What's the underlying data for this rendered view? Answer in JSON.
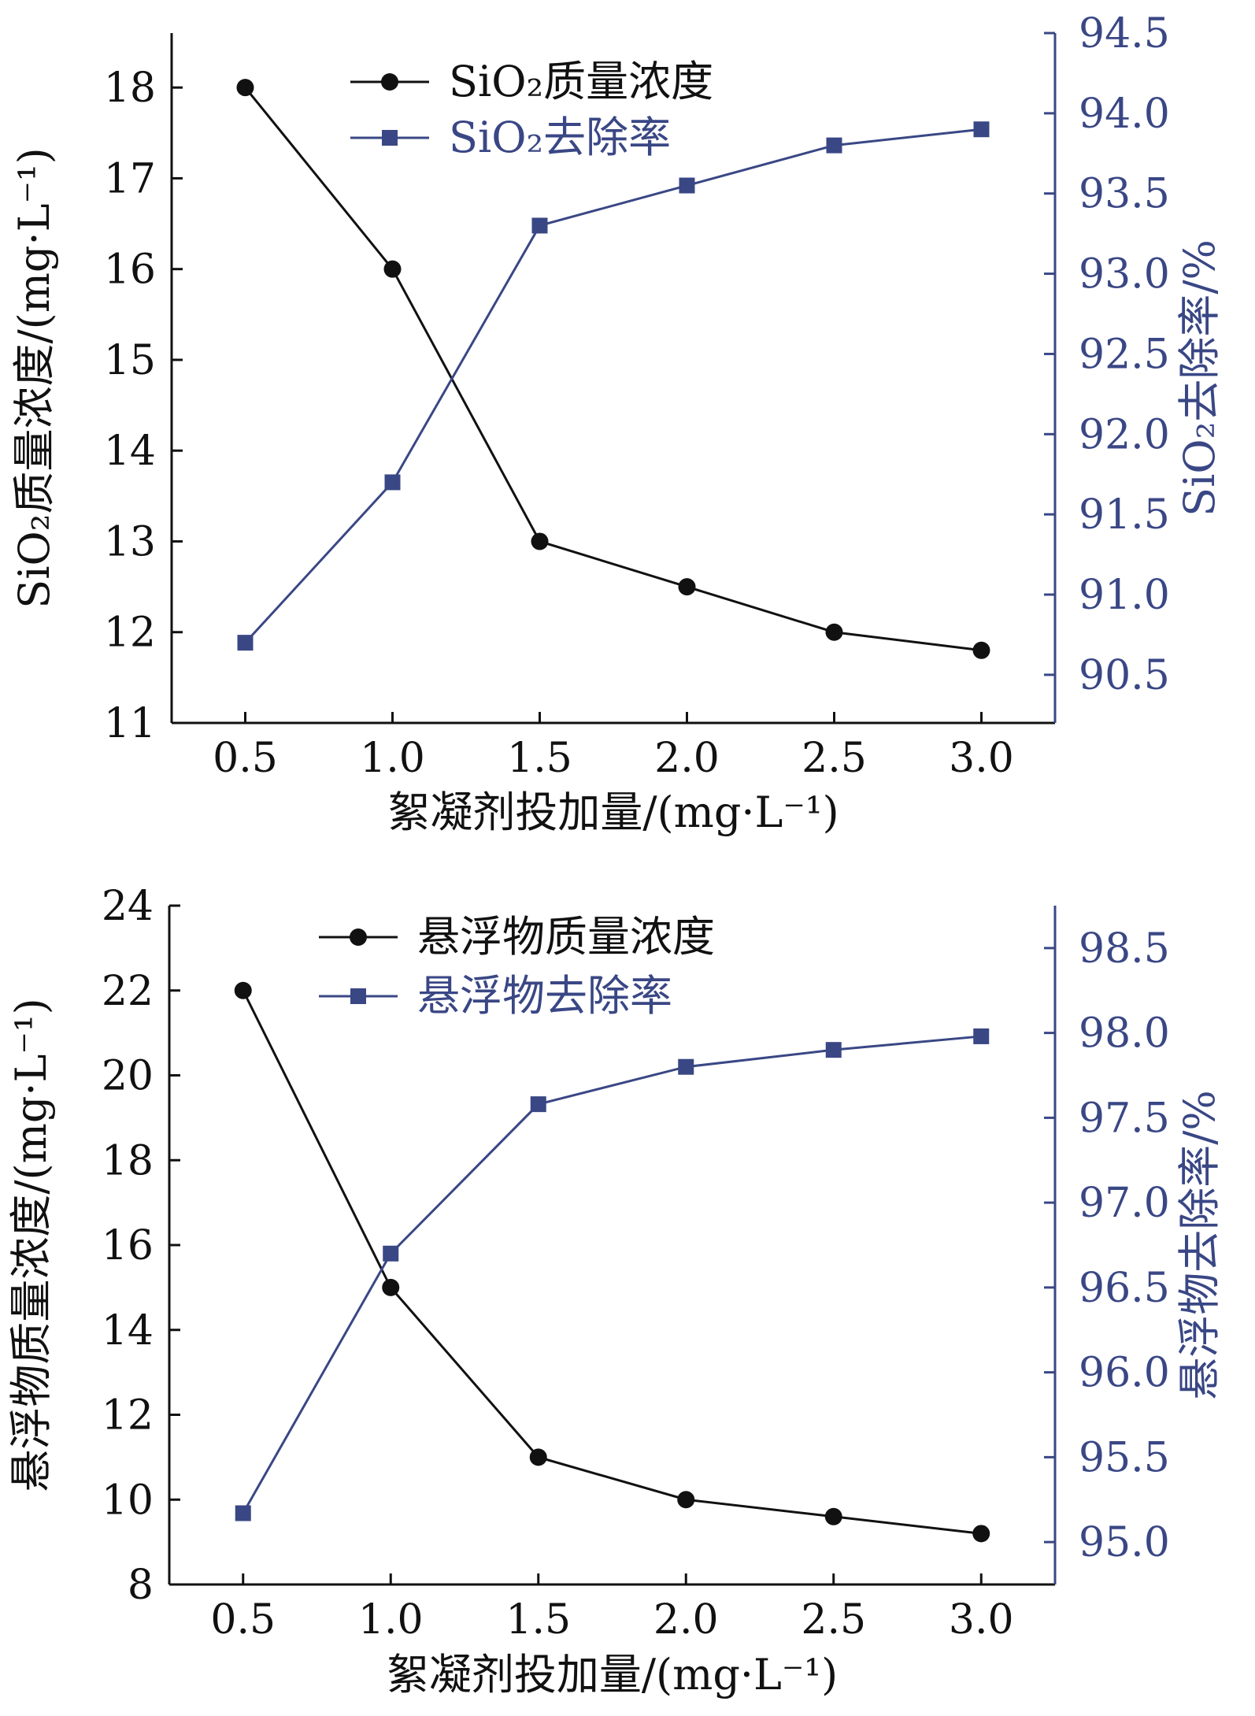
{
  "chart_data": [
    {
      "type": "line",
      "x": [
        0.5,
        1.0,
        1.5,
        2.0,
        2.5,
        3.0
      ],
      "x_tick_labels": [
        "0.5",
        "1.0",
        "1.5",
        "2.0",
        "2.5",
        "3.0"
      ],
      "xlabel": "絮凝剂投加量/(mg·L⁻¹)",
      "ylabel_left": "SiO₂质量浓度/(mg·L⁻¹)",
      "ylabel_right": "SiO₂去除率/%",
      "ylim_left": [
        11,
        18.6
      ],
      "yticks_left": [
        "11",
        "12",
        "13",
        "14",
        "15",
        "16",
        "17",
        "18"
      ],
      "ylim_right": [
        90.2,
        94.5
      ],
      "yticks_right": [
        "90.5",
        "91.0",
        "91.5",
        "92.0",
        "92.5",
        "93.0",
        "93.5",
        "94.0",
        "94.5"
      ],
      "grid": false,
      "legend_position": "top",
      "series": [
        {
          "name": "SiO₂质量浓度",
          "axis": "left",
          "marker": "circle",
          "color": "#111111",
          "values": [
            18.0,
            16.0,
            13.0,
            12.5,
            12.0,
            11.8
          ]
        },
        {
          "name": "SiO₂去除率",
          "axis": "right",
          "marker": "square",
          "color": "#3a4785",
          "values": [
            90.7,
            91.7,
            93.3,
            93.55,
            93.8,
            93.9
          ]
        }
      ]
    },
    {
      "type": "line",
      "x": [
        0.5,
        1.0,
        1.5,
        2.0,
        2.5,
        3.0
      ],
      "x_tick_labels": [
        "0.5",
        "1.0",
        "1.5",
        "2.0",
        "2.5",
        "3.0"
      ],
      "xlabel": "絮凝剂投加量/(mg·L⁻¹)",
      "ylabel_left": "悬浮物质量浓度/(mg·L⁻¹)",
      "ylabel_right": "悬浮物去除率/%",
      "ylim_left": [
        8,
        24
      ],
      "yticks_left": [
        "8",
        "10",
        "12",
        "14",
        "16",
        "18",
        "20",
        "22",
        "24"
      ],
      "ylim_right": [
        94.75,
        98.75
      ],
      "yticks_right": [
        "95.0",
        "95.5",
        "96.0",
        "96.5",
        "97.0",
        "97.5",
        "98.0",
        "98.5"
      ],
      "grid": false,
      "legend_position": "top",
      "series": [
        {
          "name": "悬浮物质量浓度",
          "axis": "left",
          "marker": "circle",
          "color": "#111111",
          "values": [
            22.0,
            15.0,
            11.0,
            10.0,
            9.6,
            9.2
          ]
        },
        {
          "name": "悬浮物去除率",
          "axis": "right",
          "marker": "square",
          "color": "#3a4785",
          "values": [
            95.17,
            96.7,
            97.58,
            97.8,
            97.9,
            97.98
          ]
        }
      ]
    }
  ]
}
